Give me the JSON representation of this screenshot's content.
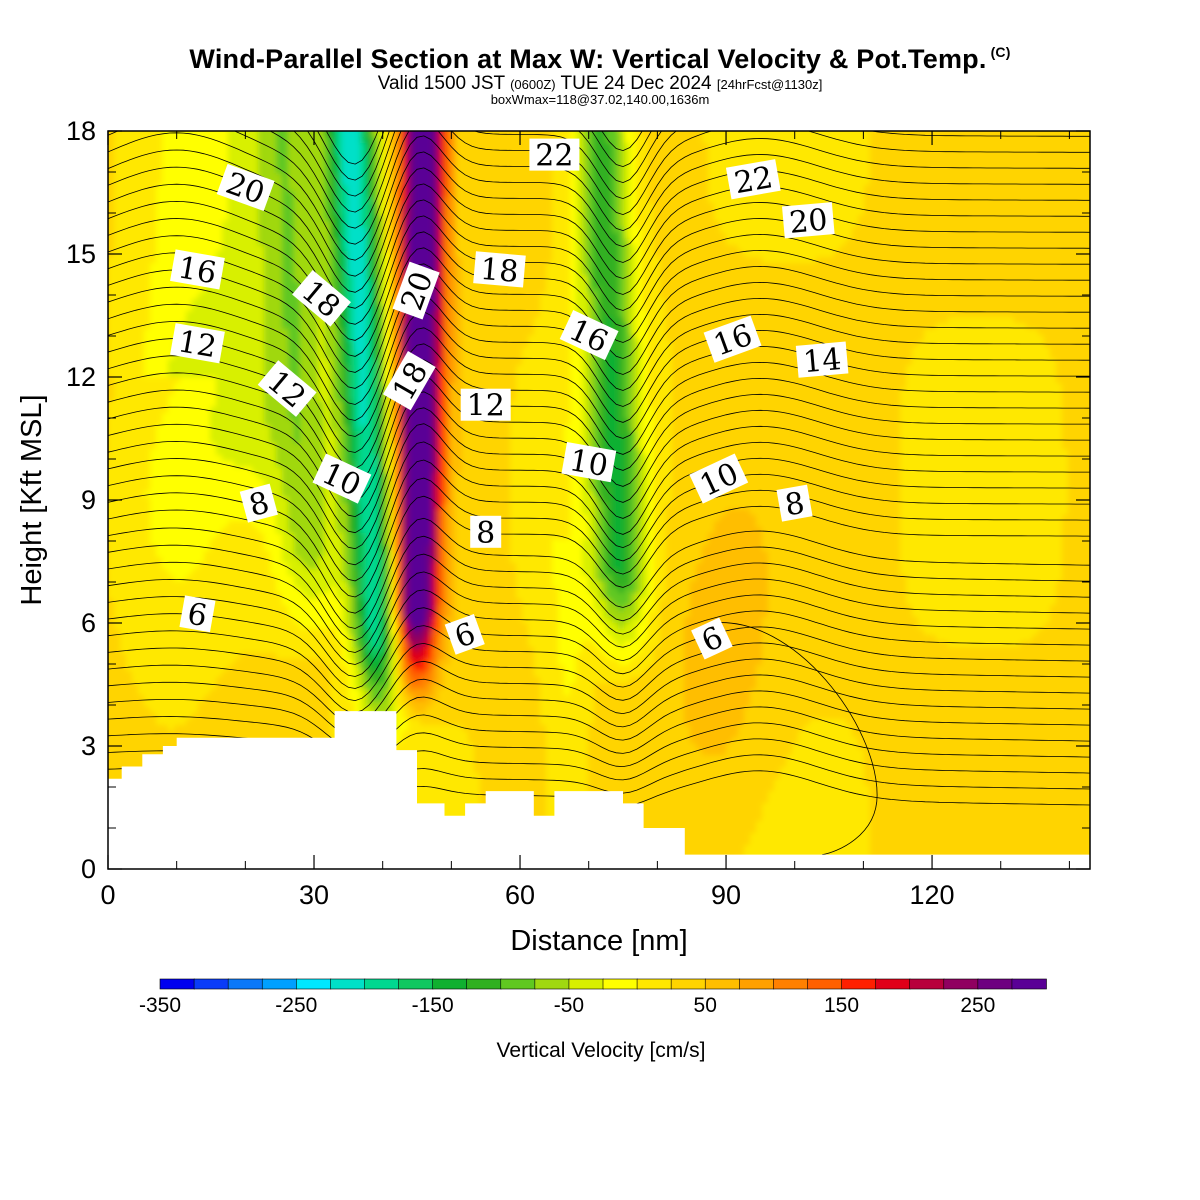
{
  "header": {
    "title": "Wind-Parallel Section at Max W: Vertical Velocity & Pot.Temp.",
    "copyright": "(C)",
    "valid_prefix": "Valid 1500 JST",
    "valid_utc": "(0600Z)",
    "valid_date": "TUE 24 Dec 2024",
    "forecast": "[24hrFcst@1130z]",
    "boxwmax": "boxWmax=118@37.02,140.00,1636m"
  },
  "chart_data": {
    "type": "heatmap",
    "title": "Wind-Parallel Section at Max W: Vertical Velocity & Pot.Temp.",
    "xlabel": "Distance [nm]",
    "ylabel": "Height [Kft MSL]",
    "xlim": [
      0,
      143
    ],
    "ylim": [
      0,
      18
    ],
    "x_ticks": [
      "0",
      "30",
      "60",
      "90",
      "120"
    ],
    "y_ticks": [
      "0",
      "3",
      "6",
      "9",
      "12",
      "15",
      "18"
    ],
    "colorbar": {
      "label": "Vertical Velocity [cm/s]",
      "tick_labels": [
        "-350",
        "-250",
        "-150",
        "-50",
        "50",
        "150",
        "250"
      ],
      "range": [
        -350,
        300
      ],
      "step": 25,
      "colors": [
        "#0000f0",
        "#0a3cf8",
        "#0a78f8",
        "#00a0ff",
        "#00e8ff",
        "#00e0c8",
        "#00d890",
        "#10c860",
        "#10b030",
        "#30b020",
        "#60c820",
        "#a0d810",
        "#d8f000",
        "#ffff00",
        "#ffe800",
        "#ffd400",
        "#ffbe00",
        "#ffa000",
        "#ff8000",
        "#ff6000",
        "#ff2000",
        "#e00018",
        "#b8003c",
        "#900060",
        "#6e0080",
        "#5a0096"
      ]
    },
    "vertical_velocity_features": [
      {
        "name": "downdraft",
        "x": 36,
        "y_from": 3.8,
        "y_to": 18,
        "peak": -250
      },
      {
        "name": "updraft",
        "x": 46,
        "y_from": 4.5,
        "y_to": 18,
        "peak": 300
      },
      {
        "name": "downdraft",
        "x": 75,
        "y_from": 5.5,
        "y_to": 18,
        "peak": -150
      },
      {
        "name": "downdraft",
        "x": 28,
        "y_from": 6,
        "y_to": 18,
        "peak": -100
      },
      {
        "name": "updraft",
        "x": 89,
        "y_from": 0.5,
        "y_to": 18,
        "peak": 75
      }
    ],
    "potential_temperature_contour_labels": [
      {
        "text": "20",
        "x": 20,
        "y": 16.6
      },
      {
        "text": "16",
        "x": 13,
        "y": 14.6
      },
      {
        "text": "18",
        "x": 31,
        "y": 13.9
      },
      {
        "text": "12",
        "x": 13,
        "y": 12.8
      },
      {
        "text": "12",
        "x": 26,
        "y": 11.7
      },
      {
        "text": "10",
        "x": 34,
        "y": 9.5
      },
      {
        "text": "8",
        "x": 22,
        "y": 8.9
      },
      {
        "text": "6",
        "x": 13,
        "y": 6.2
      },
      {
        "text": "20",
        "x": 45,
        "y": 14.1
      },
      {
        "text": "18",
        "x": 44,
        "y": 11.9
      },
      {
        "text": "22",
        "x": 65,
        "y": 17.4
      },
      {
        "text": "18",
        "x": 57,
        "y": 14.6
      },
      {
        "text": "12",
        "x": 55,
        "y": 11.3
      },
      {
        "text": "8",
        "x": 55,
        "y": 8.2
      },
      {
        "text": "6",
        "x": 52,
        "y": 5.7
      },
      {
        "text": "16",
        "x": 70,
        "y": 13.0
      },
      {
        "text": "10",
        "x": 70,
        "y": 9.9
      },
      {
        "text": "22",
        "x": 94,
        "y": 16.8
      },
      {
        "text": "20",
        "x": 102,
        "y": 15.8
      },
      {
        "text": "16",
        "x": 91,
        "y": 12.9
      },
      {
        "text": "14",
        "x": 104,
        "y": 12.4
      },
      {
        "text": "10",
        "x": 89,
        "y": 9.5
      },
      {
        "text": "8",
        "x": 100,
        "y": 8.9
      },
      {
        "text": "6",
        "x": 88,
        "y": 5.6
      }
    ],
    "terrain": [
      [
        0,
        2.2
      ],
      [
        2,
        2.2
      ],
      [
        2,
        2.5
      ],
      [
        5,
        2.5
      ],
      [
        5,
        2.8
      ],
      [
        8,
        2.8
      ],
      [
        8,
        3.0
      ],
      [
        10,
        3.0
      ],
      [
        10,
        3.2
      ],
      [
        33,
        3.2
      ],
      [
        33,
        3.85
      ],
      [
        42,
        3.85
      ],
      [
        42,
        2.9
      ],
      [
        45,
        2.9
      ],
      [
        45,
        1.6
      ],
      [
        49,
        1.6
      ],
      [
        49,
        1.3
      ],
      [
        52,
        1.3
      ],
      [
        52,
        1.6
      ],
      [
        55,
        1.6
      ],
      [
        55,
        1.9
      ],
      [
        62,
        1.9
      ],
      [
        62,
        1.3
      ],
      [
        65,
        1.3
      ],
      [
        65,
        1.9
      ],
      [
        75,
        1.9
      ],
      [
        75,
        1.6
      ],
      [
        78,
        1.6
      ],
      [
        78,
        1.0
      ],
      [
        84,
        1.0
      ],
      [
        84,
        0.35
      ],
      [
        143,
        0.35
      ]
    ]
  }
}
